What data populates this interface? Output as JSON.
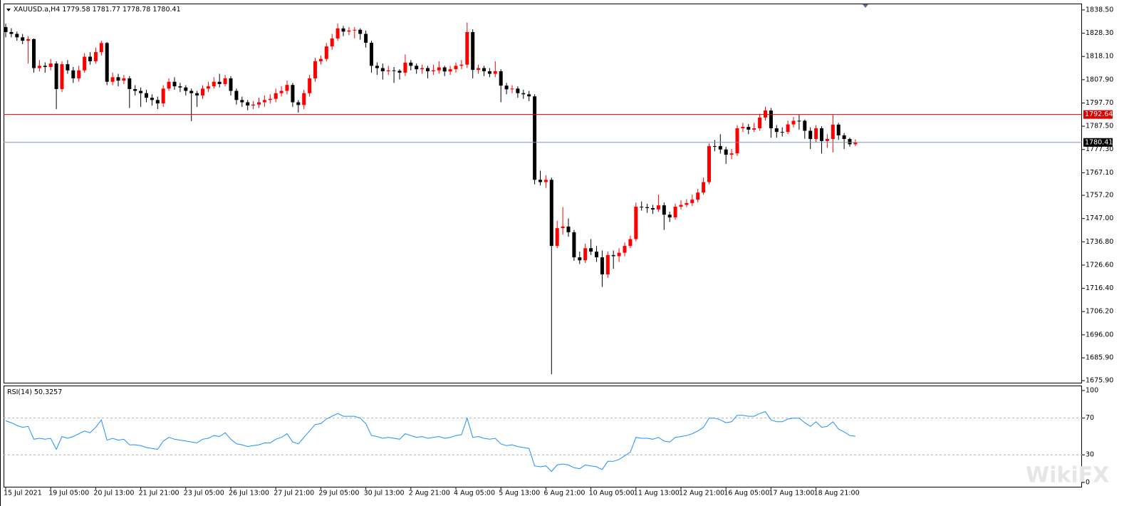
{
  "chart_data": [
    {
      "type": "candlestick",
      "symbol": "XAUUSD.a,H4",
      "categories": [
        "15 Jul 2021",
        null,
        null,
        null,
        null,
        null,
        null,
        null,
        "19 Jul 05:00",
        null,
        null,
        null,
        null,
        null,
        null,
        null,
        "20 Jul 13:00",
        null,
        null,
        null,
        null,
        null,
        null,
        null,
        "21 Jul 21:00",
        null,
        null,
        null,
        null,
        null,
        null,
        null,
        "23 Jul 05:00",
        null,
        null,
        null,
        null,
        null,
        null,
        null,
        "26 Jul 13:00",
        null,
        null,
        null,
        null,
        null,
        null,
        null,
        "27 Jul 21:00",
        null,
        null,
        null,
        null,
        null,
        null,
        null,
        "29 Jul 05:00",
        null,
        null,
        null,
        null,
        null,
        null,
        null,
        "30 Jul 13:00",
        null,
        null,
        null,
        null,
        null,
        null,
        null,
        "2 Aug 21:00",
        null,
        null,
        null,
        null,
        null,
        null,
        null,
        "4 Aug 05:00",
        null,
        null,
        null,
        null,
        null,
        null,
        null,
        "5 Aug 13:00",
        null,
        null,
        null,
        null,
        null,
        null,
        null,
        "6 Aug 21:00",
        null,
        null,
        null,
        null,
        null,
        null,
        null,
        "10 Aug 05:00",
        null,
        null,
        null,
        null,
        null,
        null,
        null,
        "11 Aug 13:00",
        null,
        null,
        null,
        null,
        null,
        null,
        null,
        "12 Aug 21:00",
        null,
        null,
        null,
        null,
        null,
        null,
        null,
        "16 Aug 05:00",
        null,
        null,
        null,
        null,
        null,
        null,
        null,
        "17 Aug 13:00",
        null,
        null,
        null,
        null,
        null,
        null,
        null,
        "18 Aug 21:00",
        null,
        null,
        null,
        null,
        null,
        null,
        null
      ],
      "candles": [
        [
          1831,
          1832.5,
          1826.5,
          1828.8
        ],
        [
          1828.8,
          1830.5,
          1826.5,
          1828
        ],
        [
          1828,
          1829,
          1825,
          1826.5
        ],
        [
          1826.5,
          1828,
          1823.5,
          1825
        ],
        [
          1825,
          1827,
          1815,
          1825.7
        ],
        [
          1825.7,
          1826,
          1811,
          1813
        ],
        [
          1813,
          1816.5,
          1811.5,
          1814
        ],
        [
          1814,
          1815.5,
          1811,
          1813.5
        ],
        [
          1813.5,
          1817,
          1812,
          1815
        ],
        [
          1815,
          1816,
          1795,
          1803.8
        ],
        [
          1803.8,
          1816,
          1802.5,
          1814.7
        ],
        [
          1814.7,
          1816.5,
          1810.5,
          1812
        ],
        [
          1812,
          1813.5,
          1806.5,
          1808.5
        ],
        [
          1808.5,
          1814,
          1807,
          1812
        ],
        [
          1812,
          1819.5,
          1811,
          1818
        ],
        [
          1818,
          1820,
          1814.5,
          1816
        ],
        [
          1816,
          1822,
          1815,
          1820
        ],
        [
          1820,
          1825,
          1818.5,
          1824
        ],
        [
          1824,
          1824.5,
          1805.5,
          1807
        ],
        [
          1807,
          1811,
          1805.5,
          1809
        ],
        [
          1809,
          1810.5,
          1805,
          1807.5
        ],
        [
          1807.5,
          1810,
          1806,
          1808.5
        ],
        [
          1808.5,
          1809.5,
          1795.5,
          1803.8
        ],
        [
          1803.8,
          1805.5,
          1801,
          1803
        ],
        [
          1803,
          1804.5,
          1796,
          1802
        ],
        [
          1802,
          1803.5,
          1798,
          1800
        ],
        [
          1800,
          1801.5,
          1796.5,
          1799
        ],
        [
          1799,
          1800.5,
          1795,
          1797.5
        ],
        [
          1797.5,
          1805.5,
          1796,
          1804
        ],
        [
          1804,
          1808.5,
          1803,
          1807
        ],
        [
          1807,
          1809,
          1803.5,
          1805
        ],
        [
          1805,
          1806.5,
          1802.5,
          1804.5
        ],
        [
          1804.5,
          1805.5,
          1801,
          1803
        ],
        [
          1803,
          1804,
          1789.7,
          1802
        ],
        [
          1802,
          1803,
          1796,
          1801
        ],
        [
          1801,
          1805.5,
          1799.5,
          1804
        ],
        [
          1804,
          1807,
          1802.5,
          1805
        ],
        [
          1805,
          1809,
          1804,
          1807
        ],
        [
          1807,
          1810.5,
          1804.5,
          1806
        ],
        [
          1806,
          1810,
          1805,
          1808.5
        ],
        [
          1808.5,
          1809.5,
          1801,
          1803
        ],
        [
          1803,
          1804,
          1797,
          1799
        ],
        [
          1799,
          1800.5,
          1796,
          1798
        ],
        [
          1798,
          1799,
          1794.5,
          1796.6
        ],
        [
          1796.6,
          1798.5,
          1795,
          1797
        ],
        [
          1797,
          1800,
          1795.5,
          1798
        ],
        [
          1798,
          1801,
          1796,
          1799
        ],
        [
          1799,
          1801.5,
          1797.5,
          1799.5
        ],
        [
          1799.5,
          1804,
          1798,
          1802
        ],
        [
          1802,
          1805,
          1800.5,
          1803
        ],
        [
          1803,
          1807.5,
          1801.5,
          1805.6
        ],
        [
          1805.6,
          1806.5,
          1796,
          1798
        ],
        [
          1798,
          1799,
          1793.5,
          1796.8
        ],
        [
          1796.8,
          1803.5,
          1795,
          1802
        ],
        [
          1802,
          1810,
          1800.5,
          1808.5
        ],
        [
          1808.5,
          1817.5,
          1807,
          1816
        ],
        [
          1816,
          1818.5,
          1814.5,
          1817
        ],
        [
          1817,
          1824,
          1816,
          1822.5
        ],
        [
          1822.5,
          1828,
          1821,
          1826
        ],
        [
          1826,
          1832.5,
          1825,
          1830.4
        ],
        [
          1830.4,
          1831.5,
          1827,
          1829
        ],
        [
          1829,
          1831,
          1827.5,
          1829.5
        ],
        [
          1829.5,
          1831,
          1826,
          1829.8
        ],
        [
          1829.8,
          1830.5,
          1825.5,
          1828
        ],
        [
          1828,
          1829.5,
          1822,
          1824.1
        ],
        [
          1824.1,
          1825,
          1811,
          1814
        ],
        [
          1814,
          1815.5,
          1810,
          1813
        ],
        [
          1813,
          1815,
          1808,
          1811.6
        ],
        [
          1811.6,
          1814,
          1810,
          1812
        ],
        [
          1812,
          1813.5,
          1806.5,
          1811.8
        ],
        [
          1811.8,
          1812.5,
          1808,
          1811
        ],
        [
          1811,
          1819,
          1809.5,
          1815.4
        ],
        [
          1815.4,
          1816.5,
          1812,
          1814
        ],
        [
          1814,
          1815,
          1810.5,
          1812.5
        ],
        [
          1812.5,
          1814.5,
          1810.5,
          1813
        ],
        [
          1813,
          1814,
          1808.5,
          1811.6
        ],
        [
          1811.6,
          1814.5,
          1810,
          1812
        ],
        [
          1812,
          1816,
          1810.5,
          1813.3
        ],
        [
          1813.3,
          1814,
          1809.5,
          1811.5
        ],
        [
          1811.5,
          1814,
          1810,
          1812.5
        ],
        [
          1812.5,
          1815.5,
          1811,
          1814
        ],
        [
          1814,
          1816.5,
          1812.5,
          1814.5
        ],
        [
          1814.5,
          1833,
          1813,
          1828.8
        ],
        [
          1828.8,
          1830,
          1808.5,
          1812.2
        ],
        [
          1812.2,
          1814.5,
          1810.5,
          1813
        ],
        [
          1813,
          1814,
          1809.5,
          1811.6
        ],
        [
          1811.6,
          1813,
          1809,
          1810.5
        ],
        [
          1810.5,
          1816,
          1809,
          1811.6
        ],
        [
          1811.6,
          1812.5,
          1798,
          1805.3
        ],
        [
          1805.3,
          1806.5,
          1801.5,
          1803.7
        ],
        [
          1803.7,
          1805.5,
          1802,
          1804
        ],
        [
          1804,
          1805,
          1800,
          1802
        ],
        [
          1802,
          1803.5,
          1799.5,
          1801.5
        ],
        [
          1801.5,
          1803,
          1798.5,
          1800.6
        ],
        [
          1800.6,
          1801.5,
          1762,
          1764
        ],
        [
          1764,
          1768,
          1761.5,
          1763
        ],
        [
          1763,
          1766,
          1760.5,
          1764
        ],
        [
          1764,
          1765,
          1678.7,
          1735
        ],
        [
          1735,
          1746,
          1734,
          1742.8
        ],
        [
          1742.8,
          1752,
          1740,
          1743.5
        ],
        [
          1743.5,
          1747,
          1739,
          1741
        ],
        [
          1741,
          1742,
          1728.5,
          1730
        ],
        [
          1730,
          1732.5,
          1727,
          1728.7
        ],
        [
          1728.7,
          1736,
          1727.5,
          1734
        ],
        [
          1734,
          1738,
          1731,
          1732.5
        ],
        [
          1732.5,
          1735,
          1728,
          1730
        ],
        [
          1730,
          1733,
          1717,
          1722.5
        ],
        [
          1722.5,
          1732.5,
          1721,
          1731
        ],
        [
          1731,
          1733,
          1725,
          1730.5
        ],
        [
          1730.5,
          1734,
          1728,
          1732
        ],
        [
          1732,
          1736.5,
          1730.5,
          1735
        ],
        [
          1735,
          1739.5,
          1734,
          1738
        ],
        [
          1738,
          1754,
          1737,
          1752.2
        ],
        [
          1752.2,
          1754.5,
          1750.5,
          1752
        ],
        [
          1752,
          1753.5,
          1749.5,
          1751.6
        ],
        [
          1751.6,
          1753,
          1749,
          1751
        ],
        [
          1751,
          1757.5,
          1750,
          1752.8
        ],
        [
          1752.8,
          1754,
          1742,
          1748.7
        ],
        [
          1748.7,
          1750,
          1745.5,
          1747.5
        ],
        [
          1747.5,
          1753.5,
          1746.5,
          1752.2
        ],
        [
          1752.2,
          1755,
          1751,
          1753
        ],
        [
          1753,
          1755.5,
          1752,
          1753.8
        ],
        [
          1753.8,
          1757.5,
          1752.5,
          1755.3
        ],
        [
          1755.3,
          1760,
          1754,
          1758.4
        ],
        [
          1758.4,
          1765,
          1757.5,
          1763
        ],
        [
          1763,
          1780,
          1762,
          1778.8
        ],
        [
          1778.8,
          1781.5,
          1776.5,
          1778.8
        ],
        [
          1778.8,
          1784,
          1775.5,
          1777.3
        ],
        [
          1777.3,
          1778.5,
          1771,
          1775
        ],
        [
          1775,
          1777.5,
          1773,
          1775.6
        ],
        [
          1775.6,
          1788,
          1774.5,
          1786.6
        ],
        [
          1786.6,
          1789,
          1785,
          1787.2
        ],
        [
          1787.2,
          1788.5,
          1784,
          1786
        ],
        [
          1786,
          1789,
          1785,
          1786.6
        ],
        [
          1786.6,
          1793,
          1785.5,
          1791.3
        ],
        [
          1791.3,
          1796,
          1790,
          1794.4
        ],
        [
          1794.4,
          1795.5,
          1782.5,
          1786.6
        ],
        [
          1786.6,
          1788,
          1782.5,
          1785
        ],
        [
          1785,
          1787,
          1783,
          1785
        ],
        [
          1785,
          1790,
          1784,
          1788.3
        ],
        [
          1788.3,
          1791.5,
          1787,
          1789.9
        ],
        [
          1789.9,
          1792.5,
          1786,
          1789.9
        ],
        [
          1789.9,
          1790.5,
          1782,
          1785.5
        ],
        [
          1785.5,
          1787,
          1777.5,
          1781.9
        ],
        [
          1781.9,
          1788,
          1780.5,
          1786.6
        ],
        [
          1786.6,
          1787.5,
          1775.5,
          1781
        ],
        [
          1781,
          1784,
          1778,
          1781.9
        ],
        [
          1781.9,
          1792.5,
          1776,
          1788.2
        ],
        [
          1788.2,
          1789,
          1781.5,
          1783.5
        ],
        [
          1783.5,
          1784.5,
          1777.5,
          1781.9
        ],
        [
          1781.9,
          1782.5,
          1778.5,
          1779.58
        ],
        [
          1779.58,
          1781.77,
          1778.78,
          1780.41
        ]
      ],
      "up_color": "#ff0000",
      "down_color": "#000000",
      "ylim": [
        1675.0,
        1841.3
      ],
      "yticks": [
        {
          "value": 1838.5,
          "label": "1838.50"
        },
        {
          "value": 1828.3,
          "label": "1828.30"
        },
        {
          "value": 1818.1,
          "label": "1818.10"
        },
        {
          "value": 1807.9,
          "label": "1807.90"
        },
        {
          "value": 1797.7,
          "label": "1797.70"
        },
        {
          "value": 1787.5,
          "label": "1787.50"
        },
        {
          "value": 1777.3,
          "label": "1777.30"
        },
        {
          "value": 1767.1,
          "label": "1767.10"
        },
        {
          "value": 1757.2,
          "label": "1757.20"
        },
        {
          "value": 1747,
          "label": "1747.00"
        },
        {
          "value": 1736.8,
          "label": "1736.80"
        },
        {
          "value": 1726.6,
          "label": "1726.60"
        },
        {
          "value": 1716.4,
          "label": "1716.40"
        },
        {
          "value": 1706.2,
          "label": "1706.20"
        },
        {
          "value": 1696,
          "label": "1696.00"
        },
        {
          "value": 1685.9,
          "label": "1685.90"
        },
        {
          "value": 1675.9,
          "label": "1675.90"
        }
      ],
      "level": 1792.64,
      "level_color": "#e00000",
      "bid_color": "#7f95ad"
    },
    {
      "type": "line",
      "title": "RSI(14)",
      "color": "#1e90ff",
      "values": [
        67,
        65,
        62,
        60,
        61,
        47,
        48,
        47,
        48,
        36,
        50,
        48,
        50,
        53,
        56,
        54,
        60,
        68,
        46,
        48,
        46,
        47,
        41,
        41,
        40,
        38,
        37,
        36,
        45,
        49,
        47,
        46,
        45,
        44,
        43,
        47,
        48,
        51,
        50,
        54,
        47,
        42,
        41,
        39,
        40,
        41,
        43,
        43,
        47,
        49,
        53,
        44,
        42,
        49,
        56,
        63,
        64,
        69,
        72,
        75,
        72,
        72,
        72,
        70,
        64,
        51,
        50,
        48,
        49,
        48,
        47,
        53,
        51,
        49,
        50,
        48,
        49,
        50,
        48,
        49,
        51,
        52,
        70,
        49,
        50,
        48,
        47,
        48,
        42,
        40,
        41,
        39,
        38,
        37,
        18,
        17,
        18,
        12,
        19,
        20,
        19,
        16,
        15,
        19,
        18,
        17,
        14,
        23,
        23,
        25,
        29,
        33,
        49,
        48,
        48,
        47,
        49,
        45,
        44,
        49,
        50,
        51,
        53,
        56,
        60,
        70,
        70,
        68,
        65,
        66,
        73,
        73,
        72,
        72,
        75,
        77,
        68,
        66,
        66,
        69,
        70,
        70,
        65,
        61,
        66,
        60,
        61,
        66,
        58,
        55,
        51,
        50.3257
      ],
      "ylim": [
        -4.7,
        105.4
      ],
      "yticks": [
        100,
        70,
        30,
        0
      ],
      "levels": [
        70,
        30
      ]
    }
  ],
  "watermark": "WikiFX"
}
